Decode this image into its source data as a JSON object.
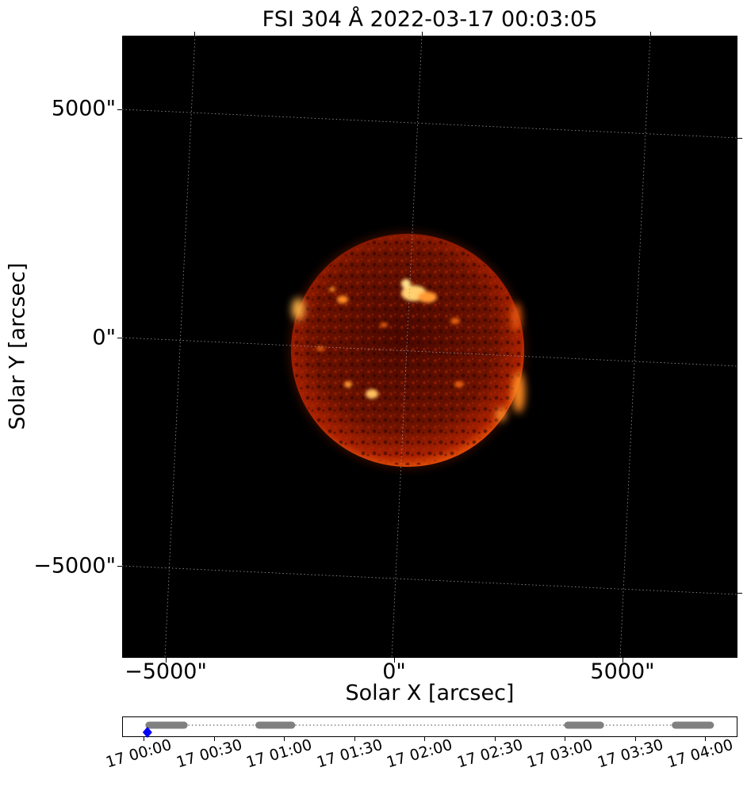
{
  "title": "FSI 304 Å 2022-03-17 00:03:05",
  "axes": {
    "xlabel": "Solar X [arcsec]",
    "ylabel": "Solar Y [arcsec]",
    "xticks": [
      "−5000\"",
      "0\"",
      "5000\""
    ],
    "yticks": [
      "5000\"",
      "0\"",
      "−5000\""
    ]
  },
  "image": {
    "description_colormap": "solar 304 red-orange",
    "colors": {
      "background": "#000000",
      "disk_dark": "#5a0b00",
      "disk_mid": "#9c1a00",
      "bright": "#ffb347",
      "limb": "#d23a00"
    }
  },
  "timeline": {
    "ticks": [
      "17 00:00",
      "17 00:30",
      "17 01:00",
      "17 01:30",
      "17 02:00",
      "17 02:30",
      "17 03:00",
      "17 03:30",
      "17 04:00"
    ],
    "segments": [
      {
        "start_min": 2,
        "end_min": 17
      },
      {
        "start_min": 49,
        "end_min": 63
      },
      {
        "start_min": 181,
        "end_min": 195
      },
      {
        "start_min": 227,
        "end_min": 242
      }
    ],
    "current_min": 3,
    "colors": {
      "segment": "#808080",
      "marker": "#0000ff",
      "dots": "#808080"
    }
  }
}
